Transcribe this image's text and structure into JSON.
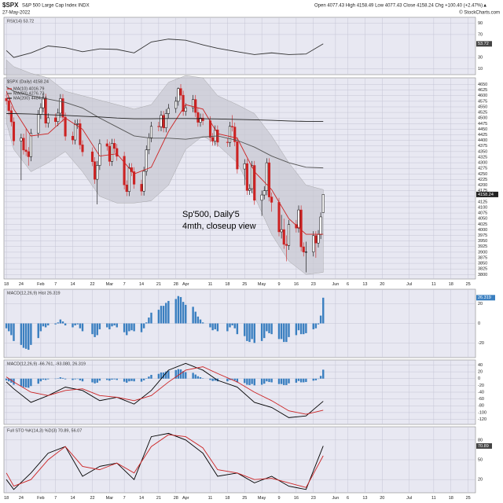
{
  "header": {
    "symbol": "$SPX",
    "name": "S&P 500 Large Cap Index INDX",
    "date": "27-May-2022",
    "ohlc": "Open 4077.43  High 4158.49  Low 4077.43  Close 4158.24  Chg +100.40 (+2.47%)▲",
    "credit": "© StockCharts.com"
  },
  "x_axis": {
    "xlim": [
      "2022-01-17",
      "2022-07-28"
    ],
    "xticks": [
      {
        "value": "2022-01-18",
        "label": "18"
      },
      {
        "value": "2022-01-24",
        "label": "24"
      },
      {
        "value": "2022-02-01",
        "label": "Feb"
      },
      {
        "value": "2022-02-07",
        "label": "7"
      },
      {
        "value": "2022-02-14",
        "label": "14"
      },
      {
        "value": "2022-02-22",
        "label": "22"
      },
      {
        "value": "2022-03-01",
        "label": "Mar"
      },
      {
        "value": "2022-03-07",
        "label": "7"
      },
      {
        "value": "2022-03-14",
        "label": "14"
      },
      {
        "value": "2022-03-21",
        "label": "21"
      },
      {
        "value": "2022-03-28",
        "label": "28"
      },
      {
        "value": "2022-04-01",
        "label": "Apr"
      },
      {
        "value": "2022-04-11",
        "label": "11"
      },
      {
        "value": "2022-04-18",
        "label": "18"
      },
      {
        "value": "2022-04-25",
        "label": "25"
      },
      {
        "value": "2022-05-02",
        "label": "May"
      },
      {
        "value": "2022-05-09",
        "label": "9"
      },
      {
        "value": "2022-05-16",
        "label": "16"
      },
      {
        "value": "2022-05-23",
        "label": "23"
      },
      {
        "value": "2022-06-01",
        "label": "Jun"
      },
      {
        "value": "2022-06-06",
        "label": "6"
      },
      {
        "value": "2022-06-13",
        "label": "13"
      },
      {
        "value": "2022-06-20",
        "label": "20"
      },
      {
        "value": "2022-07-01",
        "label": "Jul"
      },
      {
        "value": "2022-07-11",
        "label": "11"
      },
      {
        "value": "2022-07-18",
        "label": "18"
      },
      {
        "value": "2022-07-25",
        "label": "25"
      }
    ],
    "days": [
      "2022-01-18",
      "2022-01-19",
      "2022-01-20",
      "2022-01-21",
      "2022-01-24",
      "2022-01-25",
      "2022-01-26",
      "2022-01-27",
      "2022-01-28",
      "2022-01-31",
      "2022-02-01",
      "2022-02-02",
      "2022-02-03",
      "2022-02-04",
      "2022-02-07",
      "2022-02-08",
      "2022-02-09",
      "2022-02-10",
      "2022-02-11",
      "2022-02-14",
      "2022-02-15",
      "2022-02-16",
      "2022-02-17",
      "2022-02-18",
      "2022-02-22",
      "2022-02-23",
      "2022-02-24",
      "2022-02-25",
      "2022-02-28",
      "2022-03-01",
      "2022-03-02",
      "2022-03-03",
      "2022-03-04",
      "2022-03-07",
      "2022-03-08",
      "2022-03-09",
      "2022-03-10",
      "2022-03-11",
      "2022-03-14",
      "2022-03-15",
      "2022-03-16",
      "2022-03-17",
      "2022-03-18",
      "2022-03-21",
      "2022-03-22",
      "2022-03-23",
      "2022-03-24",
      "2022-03-25",
      "2022-03-28",
      "2022-03-29",
      "2022-03-30",
      "2022-03-31",
      "2022-04-01",
      "2022-04-04",
      "2022-04-05",
      "2022-04-06",
      "2022-04-07",
      "2022-04-08",
      "2022-04-11",
      "2022-04-12",
      "2022-04-13",
      "2022-04-14",
      "2022-04-18",
      "2022-04-19",
      "2022-04-20",
      "2022-04-21",
      "2022-04-22",
      "2022-04-25",
      "2022-04-26",
      "2022-04-27",
      "2022-04-28",
      "2022-04-29",
      "2022-05-02",
      "2022-05-03",
      "2022-05-04",
      "2022-05-05",
      "2022-05-06",
      "2022-05-09",
      "2022-05-10",
      "2022-05-11",
      "2022-05-12",
      "2022-05-13",
      "2022-05-16",
      "2022-05-17",
      "2022-05-18",
      "2022-05-19",
      "2022-05-20",
      "2022-05-23",
      "2022-05-24",
      "2022-05-25",
      "2022-05-26",
      "2022-05-27"
    ],
    "weeks": [
      "2022-01-18",
      "2022-01-21",
      "2022-01-28",
      "2022-02-04",
      "2022-02-11",
      "2022-02-18",
      "2022-02-25",
      "2022-03-04",
      "2022-03-11",
      "2022-03-18",
      "2022-03-25",
      "2022-04-01",
      "2022-04-08",
      "2022-04-14",
      "2022-04-22",
      "2022-04-29",
      "2022-05-06",
      "2022-05-13",
      "2022-05-20",
      "2022-05-27"
    ]
  },
  "chart_data": [
    {
      "type": "line",
      "title": "RSI(14) 53.72",
      "ylim": [
        0,
        100
      ],
      "yticks": [
        10,
        30,
        70,
        90
      ],
      "grid": true,
      "series": [
        {
          "name": "RSI(14)",
          "color": "#333333",
          "values": [
            42,
            30,
            38,
            50,
            47,
            40,
            45,
            44,
            38,
            57,
            62,
            60,
            52,
            46,
            40,
            35,
            38,
            35,
            36,
            53.72
          ]
        }
      ]
    },
    {
      "type": "candlestick",
      "title": "$SPX (Daily) 4158.24",
      "ylim": [
        3780,
        4680
      ],
      "yticks": [
        3800,
        3825,
        3850,
        3875,
        3900,
        3925,
        3950,
        3975,
        4000,
        4025,
        4050,
        4075,
        4100,
        4125,
        4150,
        4175,
        4200,
        4225,
        4250,
        4275,
        4300,
        4325,
        4350,
        4375,
        4400,
        4425,
        4450,
        4475,
        4500,
        4525,
        4550,
        4575,
        4600,
        4625,
        4650
      ],
      "grid": true,
      "up_color": "#000000",
      "down_color": "#cc2222",
      "open": [
        4588,
        4577,
        4533,
        4483,
        4398,
        4410,
        4357,
        4350,
        4327,
        4432,
        4516,
        4546,
        4589,
        4477,
        4501,
        4484,
        4522,
        4587,
        4504,
        4419,
        4402,
        4472,
        4475,
        4380,
        4349,
        4305,
        4226,
        4288,
        4385,
        4374,
        4306,
        4387,
        4364,
        4329,
        4201,
        4171,
        4278,
        4260,
        4204,
        4173,
        4262,
        4358,
        4412,
        4463,
        4461,
        4512,
        4456,
        4520,
        4543,
        4575,
        4632,
        4602,
        4530,
        4546,
        4583,
        4525,
        4481,
        4500,
        4488,
        4413,
        4397,
        4447,
        4392,
        4391,
        4463,
        4460,
        4394,
        4272,
        4296,
        4176,
        4184,
        4288,
        4132,
        4156,
        4175,
        4300,
        4147,
        4123,
        3991,
        4001,
        3935,
        3930,
        4024,
        4008,
        4089,
        3924,
        3901,
        3901,
        3974,
        3941,
        3979,
        4077.43
      ],
      "high": [
        4610,
        4597,
        4553,
        4503,
        4430,
        4430,
        4453,
        4370,
        4452,
        4536,
        4566,
        4609,
        4609,
        4521,
        4521,
        4542,
        4607,
        4607,
        4524,
        4439,
        4492,
        4495,
        4495,
        4400,
        4369,
        4325,
        4308,
        4405,
        4405,
        4394,
        4407,
        4407,
        4384,
        4349,
        4221,
        4298,
        4298,
        4280,
        4224,
        4282,
        4378,
        4432,
        4483,
        4483,
        4532,
        4532,
        4540,
        4563,
        4595,
        4637,
        4652,
        4622,
        4566,
        4603,
        4603,
        4545,
        4520,
        4520,
        4508,
        4433,
        4467,
        4467,
        4412,
        4483,
        4513,
        4480,
        4414,
        4316,
        4316,
        4204,
        4308,
        4308,
        4176,
        4195,
        4320,
        4320,
        4167,
        4143,
        4067,
        4050,
        3975,
        4044,
        4044,
        4109,
        4109,
        3944,
        3947,
        3994,
        3994,
        3999,
        4078,
        4158.49
      ],
      "low": [
        4560,
        4513,
        4463,
        4378,
        4222,
        4337,
        4330,
        4287,
        4307,
        4412,
        4496,
        4526,
        4457,
        4457,
        4464,
        4464,
        4502,
        4484,
        4399,
        4382,
        4382,
        4452,
        4360,
        4329,
        4285,
        4206,
        4114,
        4268,
        4354,
        4286,
        4286,
        4344,
        4309,
        4181,
        4151,
        4151,
        4240,
        4184,
        4153,
        4153,
        4242,
        4338,
        4392,
        4441,
        4441,
        4436,
        4436,
        4500,
        4523,
        4555,
        4582,
        4510,
        4510,
        4526,
        4505,
        4461,
        4461,
        4468,
        4393,
        4377,
        4377,
        4372,
        4371,
        4371,
        4440,
        4374,
        4252,
        4200,
        4156,
        4156,
        4164,
        4112,
        4062,
        4136,
        4155,
        4127,
        4081,
        3971,
        3961,
        3915,
        3859,
        3910,
        3988,
        3988,
        3904,
        3881,
        3810,
        3881,
        3875,
        3921,
        3959,
        4077.43
      ],
      "close": [
        4577,
        4533,
        4483,
        4398,
        4410,
        4357,
        4350,
        4327,
        4432,
        4516,
        4546,
        4589,
        4477,
        4501,
        4484,
        4522,
        4587,
        4504,
        4419,
        4402,
        4472,
        4475,
        4380,
        4349,
        4305,
        4226,
        4288,
        4385,
        4374,
        4306,
        4387,
        4364,
        4329,
        4201,
        4171,
        4278,
        4260,
        4204,
        4173,
        4262,
        4358,
        4412,
        4463,
        4461,
        4512,
        4456,
        4520,
        4543,
        4575,
        4632,
        4602,
        4530,
        4546,
        4583,
        4525,
        4481,
        4500,
        4488,
        4413,
        4397,
        4447,
        4392,
        4391,
        4463,
        4460,
        4394,
        4272,
        4296,
        4176,
        4184,
        4288,
        4132,
        4156,
        4175,
        4300,
        4147,
        4123,
        3991,
        4001,
        3935,
        3930,
        4024,
        4008,
        4089,
        3924,
        3901,
        3901,
        3974,
        3941,
        3979,
        4058,
        4158.24
      ],
      "bands": {
        "color": "#c8c8d2",
        "upper": [
          4760,
          4730,
          4700,
          4680,
          4620,
          4600,
          4580,
          4560,
          4540,
          4560,
          4660,
          4690,
          4680,
          4600,
          4560,
          4520,
          4420,
          4300,
          4200,
          4180
        ],
        "lower": [
          4480,
          4360,
          4260,
          4300,
          4350,
          4260,
          4150,
          4120,
          4120,
          4130,
          4200,
          4360,
          4420,
          4380,
          4300,
          4150,
          3980,
          3860,
          3800,
          3810
        ]
      },
      "series": [
        {
          "name": "MA(10) 4016.79",
          "color": "#cc2222",
          "values": [
            4620,
            4540,
            4420,
            4430,
            4500,
            4450,
            4330,
            4340,
            4250,
            4280,
            4440,
            4560,
            4540,
            4430,
            4410,
            4260,
            4180,
            4050,
            3980,
            3980
          ]
        },
        {
          "name": "MA(50) 4276.73",
          "color": "#555555",
          "values": [
            4640,
            4620,
            4600,
            4585,
            4570,
            4545,
            4500,
            4460,
            4420,
            4410,
            4410,
            4405,
            4415,
            4420,
            4400,
            4370,
            4330,
            4300,
            4280,
            4277
          ]
        },
        {
          "name": "MA(200) 4484.64",
          "color": "#222222",
          "values": [
            4520,
            4520,
            4518,
            4515,
            4512,
            4508,
            4505,
            4500,
            4497,
            4497,
            4498,
            4498,
            4497,
            4496,
            4494,
            4492,
            4490,
            4487,
            4485,
            4485
          ]
        }
      ],
      "annotations": [
        "Sp'500, Daily'5",
        "4mth, closeup view"
      ]
    },
    {
      "type": "bar",
      "title": "MACD(12,26,9) Hist 26.319",
      "ylim": [
        -35,
        35
      ],
      "yticks": [
        -20,
        0,
        20
      ],
      "grid": true,
      "color": "#3a7fc0",
      "values": [
        -5,
        -8,
        -12,
        -18,
        -22,
        -25,
        -26,
        -27,
        -22,
        -15,
        -8,
        -3,
        -4,
        -2,
        -1,
        1,
        4,
        2,
        -2,
        -4,
        -2,
        -1,
        -5,
        -8,
        -11,
        -14,
        -12,
        -6,
        -4,
        -6,
        -3,
        -2,
        -4,
        -9,
        -12,
        -8,
        -7,
        -8,
        -9,
        -5,
        1,
        6,
        11,
        14,
        18,
        18,
        21,
        23,
        25,
        28,
        27,
        22,
        19,
        17,
        12,
        7,
        4,
        1,
        -4,
        -7,
        -6,
        -8,
        -8,
        -4,
        -2,
        -5,
        -11,
        -13,
        -18,
        -19,
        -16,
        -20,
        -18,
        -15,
        -8,
        -10,
        -11,
        -16,
        -16,
        -19,
        -19,
        -14,
        -12,
        -7,
        -11,
        -11,
        -10,
        -6,
        -5,
        -1,
        8,
        26.319
      ]
    },
    {
      "type": "macd",
      "title": "MACD(12,26,9) -66.761, -93.080, 26.319",
      "ylim": [
        -135,
        55
      ],
      "yticks": [
        -120,
        -100,
        -80,
        -60,
        -40,
        -20,
        0,
        20,
        40
      ],
      "grid": true,
      "series": [
        {
          "name": "MACD",
          "color": "#000000",
          "values": [
            -10,
            -30,
            -70,
            -50,
            -25,
            -35,
            -65,
            -55,
            -75,
            -35,
            25,
            45,
            25,
            -5,
            -25,
            -70,
            -85,
            -115,
            -110,
            -66.761
          ]
        },
        {
          "name": "Signal",
          "color": "#cc2222",
          "values": [
            5,
            -10,
            -40,
            -50,
            -35,
            -30,
            -50,
            -55,
            -65,
            -50,
            -10,
            25,
            35,
            15,
            -10,
            -40,
            -65,
            -95,
            -105,
            -93.08
          ]
        }
      ]
    },
    {
      "type": "line",
      "title": "Full STO %K(14,3) %D(3) 70.89, 56.07",
      "ylim": [
        0,
        100
      ],
      "yticks": [
        20,
        50,
        80
      ],
      "grid": true,
      "series": [
        {
          "name": "%K",
          "color": "#000000",
          "values": [
            20,
            5,
            30,
            60,
            70,
            25,
            40,
            45,
            20,
            85,
            90,
            80,
            60,
            25,
            30,
            15,
            25,
            10,
            5,
            70.89
          ]
        },
        {
          "name": "%D",
          "color": "#cc2222",
          "values": [
            30,
            10,
            20,
            50,
            70,
            40,
            35,
            45,
            30,
            70,
            88,
            85,
            68,
            35,
            30,
            20,
            22,
            15,
            8,
            56.07
          ]
        }
      ]
    }
  ]
}
